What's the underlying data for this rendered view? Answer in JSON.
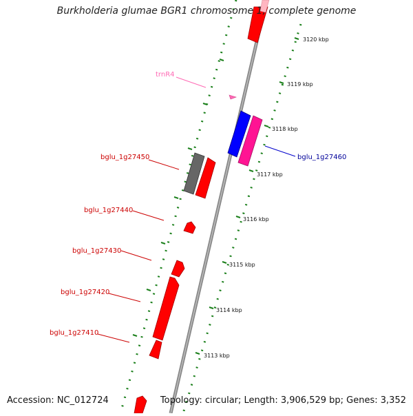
{
  "title": "Burkholderia glumae BGR1 chromosome 1, complete genome",
  "accession": "Accession: NC_012724",
  "topology": "Topology: circular; Length: 3,906,529 bp; Genes: 3,352",
  "colors": {
    "forward": "#ff0000",
    "reverse_blue": "#0000ff",
    "reverse_pink": "#ff1493",
    "pseudo": "#666666",
    "trna": "#ff69b4",
    "backbone": "#888888",
    "ticks": "#1a7f1a"
  },
  "kbp_ticks": [
    {
      "label": "3120 kbp"
    },
    {
      "label": "3119 kbp"
    },
    {
      "label": "3118 kbp"
    },
    {
      "label": "3117 kbp"
    },
    {
      "label": "3116 kbp"
    },
    {
      "label": "3115 kbp"
    },
    {
      "label": "3114 kbp"
    },
    {
      "label": "3113 kbp"
    }
  ],
  "gene_labels": [
    {
      "label": "trnR4",
      "color": "#ff69b4"
    },
    {
      "label": "bglu_1g27450",
      "color": "#cc0000"
    },
    {
      "label": "bglu_1g27460",
      "color": "#000099"
    },
    {
      "label": "bglu_1g27440",
      "color": "#cc0000"
    },
    {
      "label": "bglu_1g27430",
      "color": "#cc0000"
    },
    {
      "label": "bglu_1g27420",
      "color": "#cc0000"
    },
    {
      "label": "bglu_1g27410",
      "color": "#cc0000"
    }
  ]
}
